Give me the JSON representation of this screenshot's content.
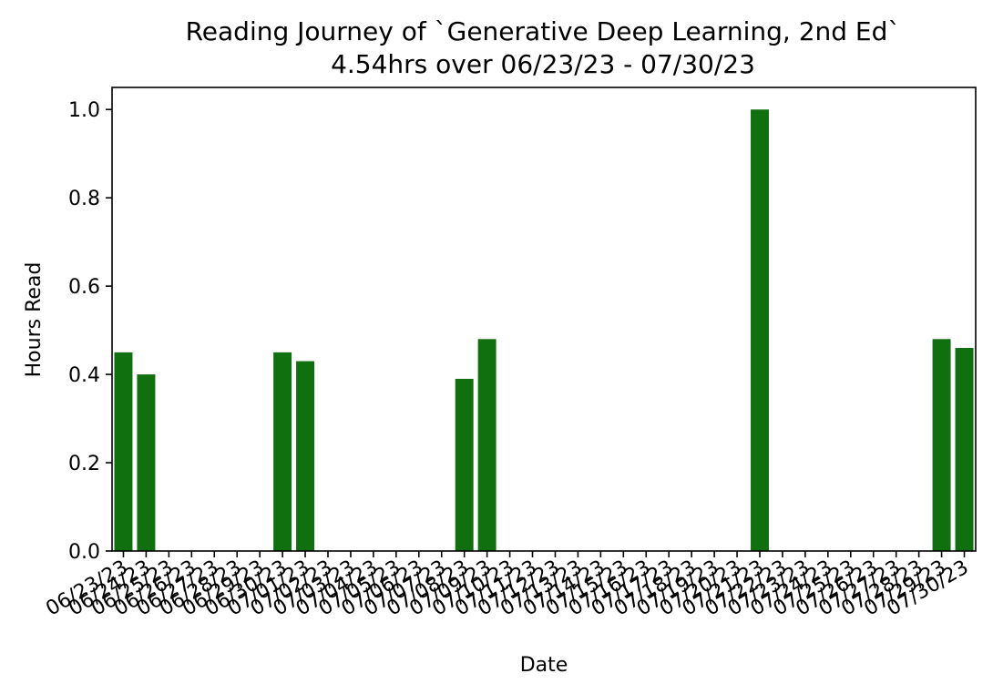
{
  "chart_data": {
    "type": "bar",
    "title": "Reading Journey of `Generative Deep Learning, 2nd Ed`",
    "subtitle": "4.54hrs over 06/23/23 - 07/30/23",
    "xlabel": "Date",
    "ylabel": "Hours Read",
    "ylim": [
      0,
      1.05
    ],
    "yticks": [
      "0.0",
      "0.2",
      "0.4",
      "0.6",
      "0.8",
      "1.0"
    ],
    "grid": false,
    "bar_color": "#107010",
    "categories": [
      "06/23/23",
      "06/24/23",
      "06/25/23",
      "06/26/23",
      "06/27/23",
      "06/28/23",
      "06/29/23",
      "06/30/23",
      "07/01/23",
      "07/02/23",
      "07/03/23",
      "07/04/23",
      "07/05/23",
      "07/06/23",
      "07/07/23",
      "07/08/23",
      "07/09/23",
      "07/10/23",
      "07/11/23",
      "07/12/23",
      "07/13/23",
      "07/14/23",
      "07/15/23",
      "07/16/23",
      "07/17/23",
      "07/18/23",
      "07/19/23",
      "07/20/23",
      "07/21/23",
      "07/22/23",
      "07/23/23",
      "07/24/23",
      "07/25/23",
      "07/26/23",
      "07/27/23",
      "07/28/23",
      "07/29/23",
      "07/30/23"
    ],
    "values": [
      0.45,
      0.4,
      0,
      0,
      0,
      0,
      0,
      0.45,
      0.43,
      0,
      0,
      0,
      0,
      0,
      0,
      0.39,
      0.48,
      0,
      0,
      0,
      0,
      0,
      0,
      0,
      0,
      0,
      0,
      0,
      1.0,
      0,
      0,
      0,
      0,
      0,
      0,
      0,
      0.48,
      0.46
    ]
  }
}
